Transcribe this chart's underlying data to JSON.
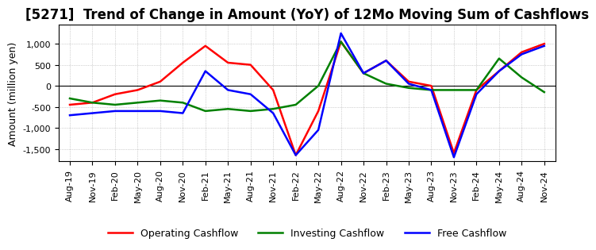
{
  "title": "[5271]  Trend of Change in Amount (YoY) of 12Mo Moving Sum of Cashflows",
  "ylabel": "Amount (million yen)",
  "ylim": [
    -1800,
    1450
  ],
  "yticks": [
    -1500,
    -1000,
    -500,
    0,
    500,
    1000
  ],
  "background_color": "#ffffff",
  "grid_color": "#aaaaaa",
  "x_labels": [
    "Aug-19",
    "Nov-19",
    "Feb-20",
    "May-20",
    "Aug-20",
    "Nov-20",
    "Feb-21",
    "May-21",
    "Aug-21",
    "Nov-21",
    "Feb-22",
    "May-22",
    "Aug-22",
    "Nov-22",
    "Feb-23",
    "May-23",
    "Aug-23",
    "Nov-23",
    "Feb-24",
    "May-24",
    "Aug-24",
    "Nov-24"
  ],
  "operating": [
    -450,
    -400,
    -200,
    -100,
    100,
    550,
    950,
    550,
    500,
    -100,
    -1650,
    -600,
    1050,
    300,
    600,
    100,
    0,
    -1600,
    -100,
    350,
    800,
    1000
  ],
  "investing": [
    -300,
    -400,
    -450,
    -400,
    -350,
    -400,
    -600,
    -550,
    -600,
    -550,
    -450,
    0,
    1050,
    300,
    50,
    -50,
    -100,
    -100,
    -100,
    650,
    200,
    -150
  ],
  "free": [
    -700,
    -650,
    -600,
    -600,
    -600,
    -650,
    350,
    -100,
    -200,
    -650,
    -1650,
    -1050,
    1250,
    300,
    600,
    50,
    -100,
    -1700,
    -200,
    350,
    750,
    950
  ],
  "operating_color": "#ff0000",
  "investing_color": "#008000",
  "free_color": "#0000ff",
  "line_width": 1.8,
  "title_fontsize": 12,
  "tick_fontsize": 8,
  "legend_fontsize": 9
}
